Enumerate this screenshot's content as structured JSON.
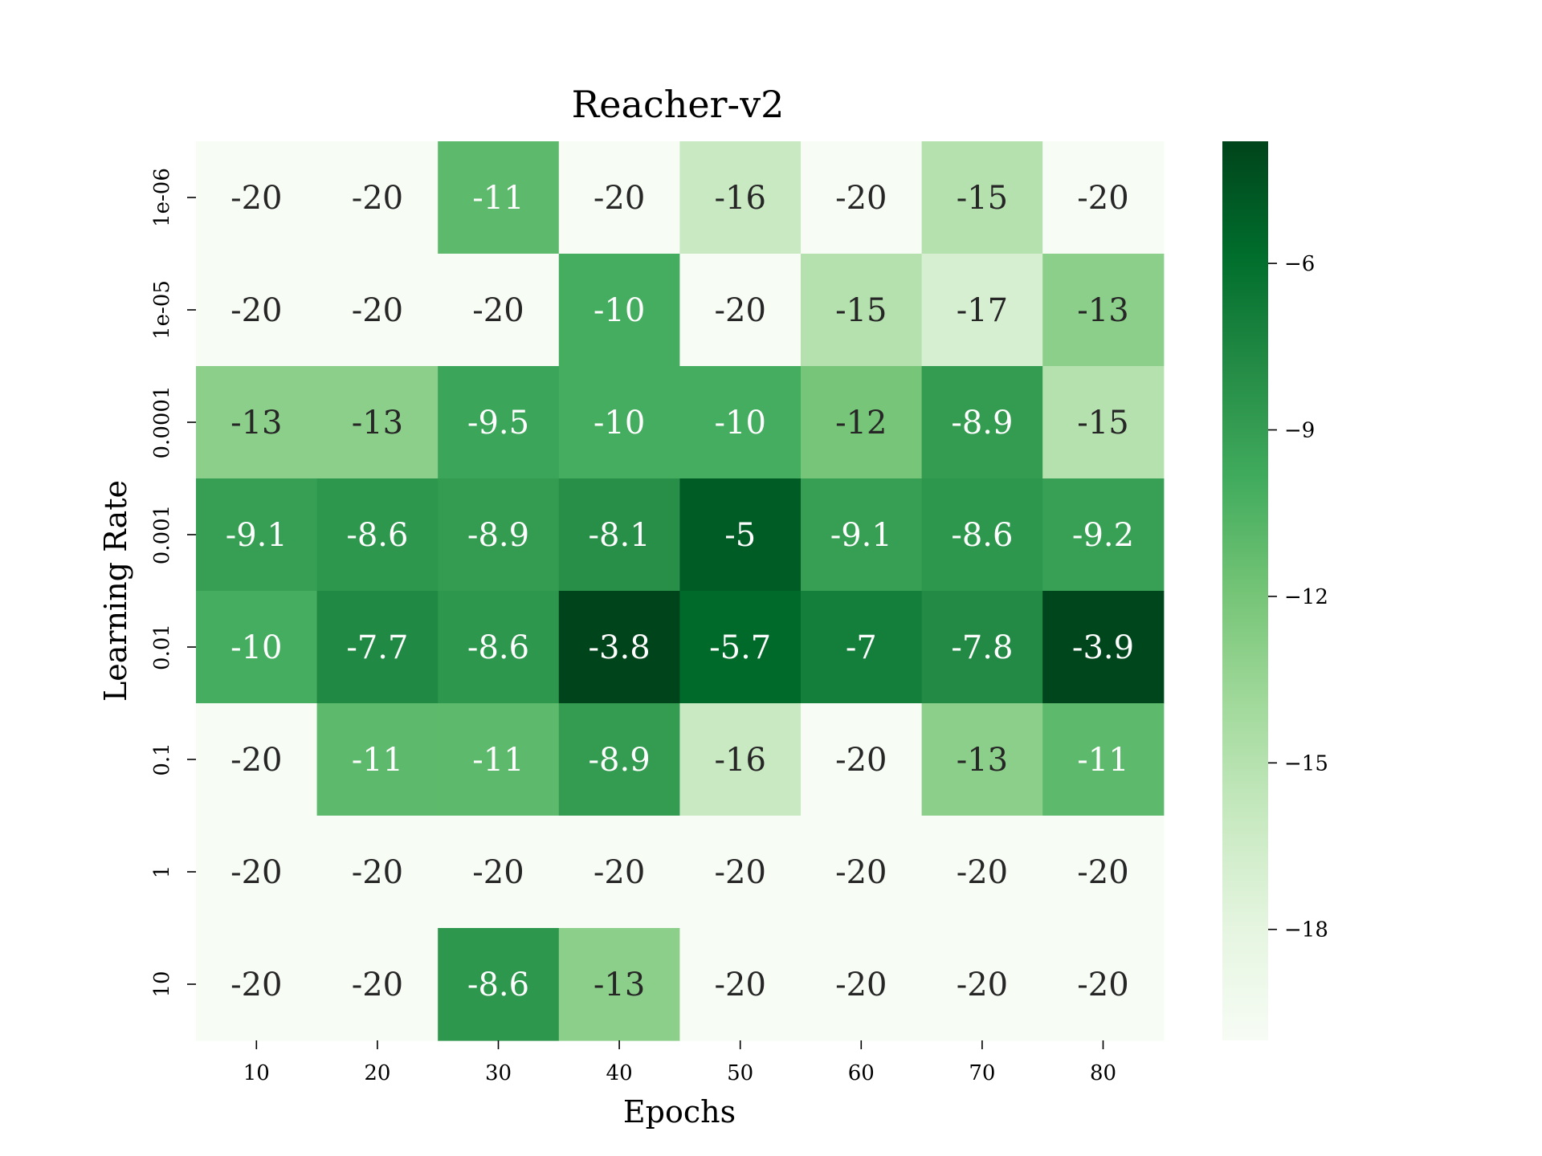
{
  "chart_data": {
    "type": "heatmap",
    "title": "Reacher-v2",
    "xlabel": "Epochs",
    "ylabel": "Learning Rate",
    "x_categories": [
      "10",
      "20",
      "30",
      "40",
      "50",
      "60",
      "70",
      "80"
    ],
    "y_categories": [
      "1e-06",
      "1e-05",
      "0.0001",
      "0.001",
      "0.01",
      "0.1",
      "1",
      "10"
    ],
    "values": [
      [
        -20,
        -20,
        -11,
        -20,
        -16,
        -20,
        -15,
        -20
      ],
      [
        -20,
        -20,
        -20,
        -10,
        -20,
        -15,
        -17,
        -13
      ],
      [
        -13,
        -13,
        -9.5,
        -10,
        -10,
        -12,
        -8.9,
        -15
      ],
      [
        -9.1,
        -8.6,
        -8.9,
        -8.1,
        -5,
        -9.1,
        -8.6,
        -9.2
      ],
      [
        -10,
        -7.7,
        -8.6,
        -3.8,
        -5.7,
        -7,
        -7.8,
        -3.9
      ],
      [
        -20,
        -11,
        -11,
        -8.9,
        -16,
        -20,
        -13,
        -11
      ],
      [
        -20,
        -20,
        -20,
        -20,
        -20,
        -20,
        -20,
        -20
      ],
      [
        -20,
        -20,
        -8.6,
        -13,
        -20,
        -20,
        -20,
        -20
      ]
    ],
    "colorbar": {
      "range": [
        -20,
        -3.8
      ],
      "ticks": [
        "−6",
        "−9",
        "−12",
        "−15",
        "−18"
      ],
      "tick_values": [
        -6,
        -9,
        -12,
        -15,
        -18
      ]
    },
    "colormap": "Greens",
    "colormap_stops": [
      "#f7fcf5",
      "#e5f5e0",
      "#c7e9c0",
      "#a1d99b",
      "#74c476",
      "#41ab5d",
      "#238b45",
      "#006d2c",
      "#00441b"
    ],
    "annotation_colors": {
      "dark": "#262626",
      "light": "#ffffff"
    }
  }
}
